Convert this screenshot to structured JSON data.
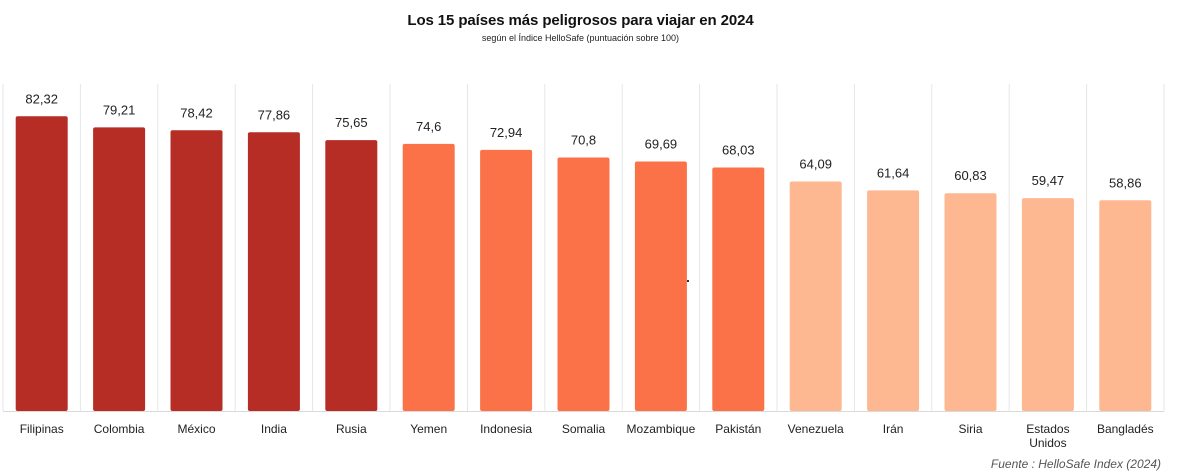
{
  "title": "Los 15 países más peligrosos para viajar en 2024",
  "subtitle": "según el Índice HelloSafe (puntuación sobre 100)",
  "source": "Fuente : HelloSafe Index (2024)",
  "colors": {
    "dark": "#b52d24",
    "mid": "#fb7249",
    "light": "#fdb892",
    "grid": "#e6e6e6",
    "axis": "#d9d9d9"
  },
  "chart_data": {
    "type": "bar",
    "title": "Los 15 países más peligrosos para viajar en 2024",
    "subtitle": "según el Índice HelloSafe (puntuación sobre 100)",
    "xlabel": "",
    "ylabel": "",
    "ylim": [
      0,
      90
    ],
    "grid": "vertical separators",
    "legend": "none",
    "categories": [
      "Filipinas",
      "Colombia",
      "México",
      "India",
      "Rusia",
      "Yemen",
      "Indonesia",
      "Somalia",
      "Mozambique",
      "Pakistán",
      "Venezuela",
      "Irán",
      "Siria",
      "Estados Unidos",
      "Bangladés"
    ],
    "category_lines": [
      [
        "Filipinas"
      ],
      [
        "Colombia"
      ],
      [
        "México"
      ],
      [
        "India"
      ],
      [
        "Rusia"
      ],
      [
        "Yemen"
      ],
      [
        "Indonesia"
      ],
      [
        "Somalia"
      ],
      [
        "Mozambique"
      ],
      [
        "Pakistán"
      ],
      [
        "Venezuela"
      ],
      [
        "Irán"
      ],
      [
        "Siria"
      ],
      [
        "Estados",
        "Unidos"
      ],
      [
        "Bangladés"
      ]
    ],
    "values": [
      82.32,
      79.21,
      78.42,
      77.86,
      75.65,
      74.6,
      72.94,
      70.8,
      69.69,
      68.03,
      64.09,
      61.64,
      60.83,
      59.47,
      58.86
    ],
    "value_labels": [
      "82,32",
      "79,21",
      "78,42",
      "77,86",
      "75,65",
      "74,6",
      "72,94",
      "70,8",
      "69,69",
      "68,03",
      "64,09",
      "61,64",
      "60,83",
      "59,47",
      "58,86"
    ],
    "tiers": [
      "dark",
      "dark",
      "dark",
      "dark",
      "dark",
      "mid",
      "mid",
      "mid",
      "mid",
      "mid",
      "light",
      "light",
      "light",
      "light",
      "light"
    ]
  }
}
